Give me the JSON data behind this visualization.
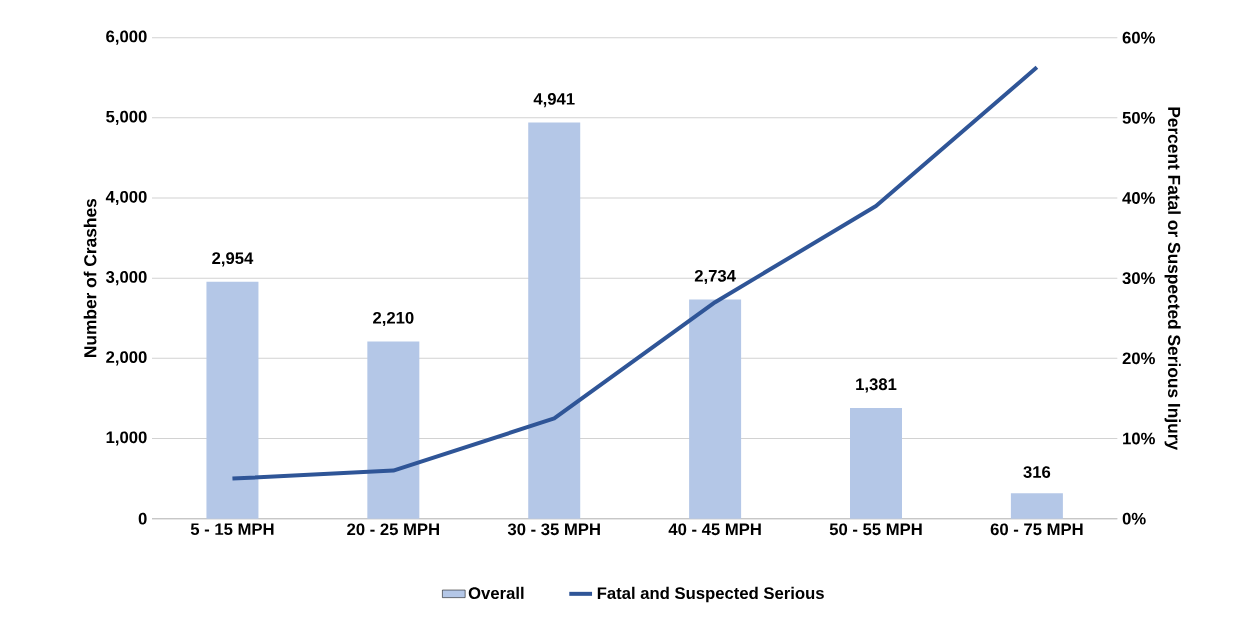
{
  "chart_data": {
    "type": "bar",
    "categories": [
      "5 - 15 MPH",
      "20 - 25 MPH",
      "30 - 35 MPH",
      "40 - 45 MPH",
      "50 - 55 MPH",
      "60 - 75 MPH"
    ],
    "series": [
      {
        "name": "Overall",
        "color": "#b4c7e7",
        "values": [
          2954,
          2210,
          4941,
          2734,
          1381,
          316
        ],
        "value_labels": [
          "2,954",
          "2,210",
          "4,941",
          "2,734",
          "1,381",
          "316"
        ]
      },
      {
        "name": "Fatal and Suspected Serious",
        "type": "line",
        "axis": "y2",
        "color": "#2f5597",
        "values": [
          5,
          6,
          12.5,
          27,
          39,
          56.3
        ]
      }
    ],
    "ylabel": "Number of Crashes",
    "y2label": "Percent Fatal or Suspected Serious Injury",
    "ylim": [
      0,
      6000
    ],
    "yticks": [
      0,
      {
        "value": 1000,
        "label": "1,000"
      },
      {
        "value": 2000,
        "label": "2,000"
      },
      {
        "value": 3000,
        "label": "3,000"
      },
      {
        "value": 4000,
        "label": "4,000"
      },
      {
        "value": 5000,
        "label": "5,000"
      },
      {
        "value": 6000,
        "label": "6,000"
      }
    ],
    "y2lim": [
      0,
      60
    ],
    "y2ticks": [
      {
        "value": 0,
        "label": "0%"
      },
      {
        "value": 10,
        "label": "10%"
      },
      {
        "value": 20,
        "label": "20%"
      },
      {
        "value": 30,
        "label": "30%"
      },
      {
        "value": 40,
        "label": "40%"
      },
      {
        "value": 50,
        "label": "50%"
      },
      {
        "value": 60,
        "label": "60%"
      }
    ],
    "grid": "y",
    "legend": "bottom"
  }
}
